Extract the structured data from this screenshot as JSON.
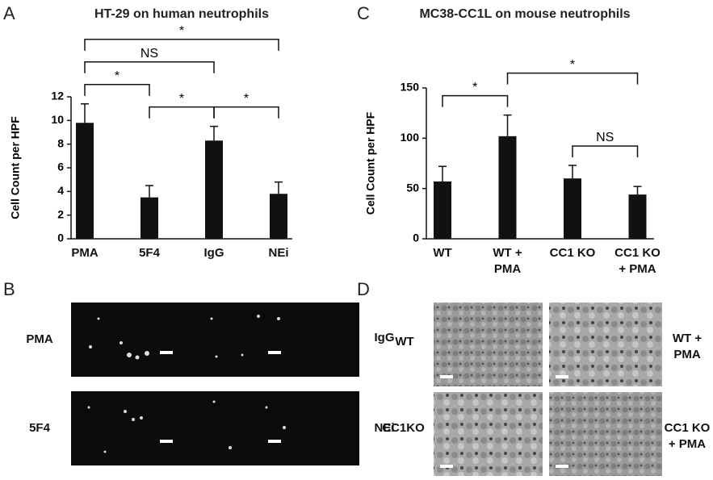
{
  "chart_data": [
    {
      "type": "bar",
      "title": "HT-29 on human neutrophils",
      "y_label": "Cell Count per HPF",
      "categories": [
        "PMA",
        "5F4",
        "IgG",
        "NEi"
      ],
      "values": [
        9.8,
        3.5,
        8.3,
        3.8
      ],
      "errors": [
        1.6,
        1.0,
        1.2,
        1.0
      ],
      "color": "#111111",
      "ylim": [
        0,
        12
      ],
      "yticks": [
        0,
        2,
        4,
        6,
        8,
        10,
        12
      ],
      "annotations": [
        {
          "from": 0,
          "to": 1,
          "label": "*"
        },
        {
          "from": 1,
          "to": 2,
          "label": "*"
        },
        {
          "from": 2,
          "to": 3,
          "label": "*"
        },
        {
          "from": 0,
          "to": 2,
          "label": "NS"
        },
        {
          "from": 0,
          "to": 3,
          "label": "*"
        }
      ]
    },
    {
      "type": "bar",
      "title": "MC38-CC1L on mouse neutrophils",
      "y_label": "Cell Count per HPF",
      "categories": [
        "WT",
        "WT + PMA",
        "CC1 KO",
        "CC1 KO + PMA"
      ],
      "values": [
        57,
        102,
        60,
        44
      ],
      "errors": [
        15,
        21,
        13,
        8
      ],
      "color": "#111111",
      "ylim": [
        0,
        150
      ],
      "yticks": [
        0,
        50,
        100,
        150
      ],
      "annotations": [
        {
          "from": 0,
          "to": 1,
          "label": "*"
        },
        {
          "from": 1,
          "to": 3,
          "label": "*"
        },
        {
          "from": 2,
          "to": 3,
          "label": "NS"
        }
      ]
    }
  ],
  "panels": {
    "letters": [
      "A",
      "B",
      "C",
      "D"
    ],
    "b_labels": [
      "PMA",
      "IgG",
      "5F4",
      "NEi"
    ],
    "d_labels": [
      "WT",
      "WT + PMA",
      "CC1KO",
      "CC1 KO + PMA"
    ]
  }
}
